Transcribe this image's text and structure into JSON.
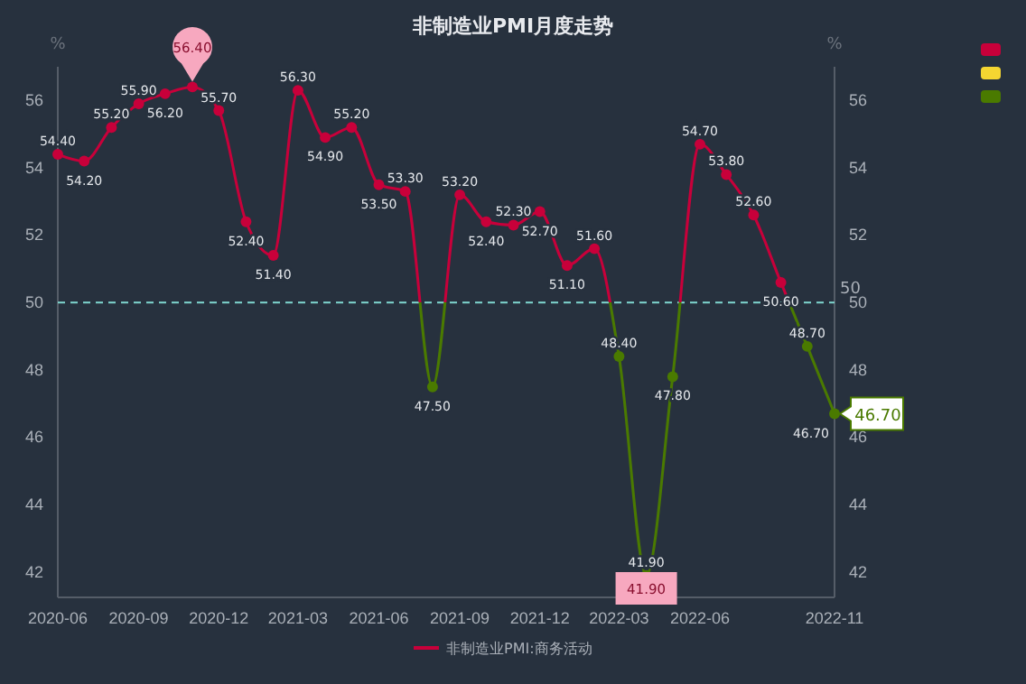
{
  "chart_data": {
    "type": "line",
    "title": "非制造业PMI月度走势",
    "ylabel": "%",
    "y2label": "%",
    "x": [
      "2020-06",
      "2020-07",
      "2020-08",
      "2020-09",
      "2020-10",
      "2020-11",
      "2020-12",
      "2021-01",
      "2021-02",
      "2021-03",
      "2021-04",
      "2021-05",
      "2021-06",
      "2021-07",
      "2021-08",
      "2021-09",
      "2021-10",
      "2021-11",
      "2021-12",
      "2022-01",
      "2022-02",
      "2022-03",
      "2022-04",
      "2022-05",
      "2022-06",
      "2022-07",
      "2022-08",
      "2022-09",
      "2022-10",
      "2022-11"
    ],
    "series": [
      {
        "name": "非制造业PMI:商务活动",
        "color": "#c8003a",
        "values": [
          54.4,
          54.2,
          55.2,
          55.9,
          56.2,
          56.4,
          55.7,
          52.4,
          51.4,
          56.3,
          54.9,
          55.2,
          53.5,
          53.3,
          47.5,
          53.2,
          52.4,
          52.3,
          52.7,
          51.1,
          51.6,
          48.4,
          41.9,
          47.8,
          54.7,
          53.8,
          52.6,
          50.6,
          48.7,
          46.7
        ],
        "value_labels": [
          "54.40",
          "54.20",
          "55.20",
          "55.90",
          "56.20",
          null,
          "55.70",
          "52.40",
          "51.40",
          "56.30",
          "54.90",
          "55.20",
          "53.50",
          "53.30",
          "47.50",
          "53.20",
          "52.40",
          "52.30",
          "52.70",
          "51.10",
          "51.60",
          "48.40",
          "41.90",
          "47.80",
          "54.70",
          "53.80",
          "52.60",
          "50.60",
          "48.70",
          "46.70"
        ],
        "colors": [
          "#c8003a",
          "#c8003a",
          "#c8003a",
          "#c8003a",
          "#c8003a",
          "#c8003a",
          "#c8003a",
          "#c8003a",
          "#c8003a",
          "#c8003a",
          "#c8003a",
          "#c8003a",
          "#c8003a",
          "#c8003a",
          "#4a7a00",
          "#c8003a",
          "#c8003a",
          "#c8003a",
          "#c8003a",
          "#c8003a",
          "#c8003a",
          "#4a7a00",
          "#4a7a00",
          "#4a7a00",
          "#c8003a",
          "#c8003a",
          "#c8003a",
          "#c8003a",
          "#4a7a00",
          "#4a7a00"
        ]
      }
    ],
    "xlim": [
      "2020-06",
      "2022-11"
    ],
    "xticks": [
      {
        "value": "2020-06",
        "label": "2020-06"
      },
      {
        "value": "2020-09",
        "label": "2020-09"
      },
      {
        "value": "2020-12",
        "label": "2020-12"
      },
      {
        "value": "2021-03",
        "label": "2021-03"
      },
      {
        "value": "2021-06",
        "label": "2021-06"
      },
      {
        "value": "2021-09",
        "label": "2021-09"
      },
      {
        "value": "2021-12",
        "label": "2021-12"
      },
      {
        "value": "2022-03",
        "label": "2022-03"
      },
      {
        "value": "2022-06",
        "label": "2022-06"
      },
      {
        "value": "2022-11",
        "label": "2022-11"
      }
    ],
    "ylim": [
      41.25,
      57
    ],
    "yticks": [
      42,
      44,
      46,
      48,
      50,
      52,
      54,
      56
    ],
    "y2lim": [
      41.25,
      57
    ],
    "y2ticks": [
      42,
      44,
      46,
      48,
      50,
      52,
      54,
      56
    ],
    "ref_lines": [
      {
        "axis": "y",
        "value": 50,
        "label": "50",
        "color": "#7fd6cf",
        "line_style": "dashed"
      }
    ],
    "annotations": [
      {
        "text": "56.40",
        "x": "2020-11",
        "y": 56.4
      },
      {
        "text": "41.90",
        "x": "2022-04",
        "y": 41.9
      },
      {
        "text": "46.70",
        "x": "2022-11",
        "y": 46.7
      }
    ],
    "marker": "circle",
    "line_style": "solid",
    "legend": "bottom",
    "grid": false
  }
}
